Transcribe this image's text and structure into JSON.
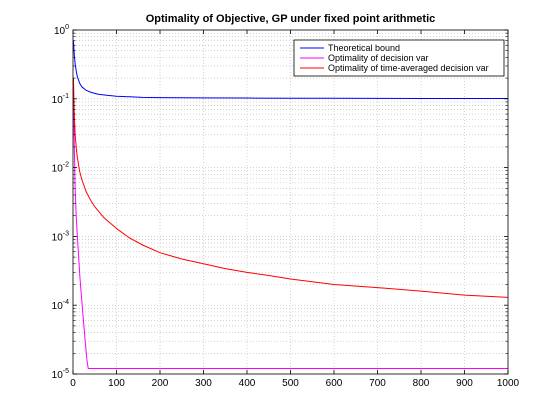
{
  "chart_data": {
    "type": "line",
    "title": "Optimality of Objective, GP under fixed point arithmetic",
    "xlabel": "",
    "ylabel": "",
    "xlim": [
      0,
      1000
    ],
    "ylim": [
      1e-05,
      1
    ],
    "yscale": "log",
    "grid": true,
    "legend_position": "top-right",
    "x_ticks": [
      0,
      100,
      200,
      300,
      400,
      500,
      600,
      700,
      800,
      900,
      1000
    ],
    "x_tick_labels": [
      "0",
      "100",
      "200",
      "300",
      "400",
      "500",
      "600",
      "700",
      "800",
      "900",
      "1000"
    ],
    "y_ticks": [
      {
        "value": 1,
        "base": "10",
        "exp": "0"
      },
      {
        "value": 0.1,
        "base": "10",
        "exp": "-1"
      },
      {
        "value": 0.01,
        "base": "10",
        "exp": "-2"
      },
      {
        "value": 0.001,
        "base": "10",
        "exp": "-3"
      },
      {
        "value": 0.0001,
        "base": "10",
        "exp": "-4"
      },
      {
        "value": 1e-05,
        "base": "10",
        "exp": "-5"
      }
    ],
    "series": [
      {
        "name": "Theoretical bound",
        "color": "#0000ff",
        "x": [
          1,
          2,
          3,
          5,
          8,
          10,
          15,
          20,
          30,
          40,
          50,
          60,
          80,
          100,
          130,
          160,
          200,
          250,
          300,
          400,
          500,
          600,
          700,
          800,
          900,
          1000
        ],
        "y": [
          0.7,
          0.55,
          0.43,
          0.32,
          0.24,
          0.21,
          0.17,
          0.15,
          0.133,
          0.125,
          0.12,
          0.116,
          0.112,
          0.109,
          0.107,
          0.105,
          0.104,
          0.1035,
          0.103,
          0.1025,
          0.102,
          0.1017,
          0.1014,
          0.1012,
          0.1011,
          0.101
        ]
      },
      {
        "name": "Optimality of decision var",
        "color": "#ff00ff",
        "x": [
          1,
          2,
          3,
          4,
          5,
          7,
          10,
          13,
          16,
          20,
          24,
          28,
          32,
          35,
          40,
          100,
          200,
          400,
          600,
          800,
          1000
        ],
        "y": [
          0.2,
          0.05,
          0.02,
          0.01,
          0.005,
          0.0022,
          0.001,
          0.0005,
          0.00025,
          0.00012,
          6e-05,
          3e-05,
          1.6e-05,
          1.2e-05,
          1.2e-05,
          1.2e-05,
          1.2e-05,
          1.2e-05,
          1.2e-05,
          1.2e-05,
          1.2e-05
        ]
      },
      {
        "name": "Optimality of time-averaged decision var",
        "color": "#ff0000",
        "x": [
          1,
          2,
          3,
          5,
          8,
          10,
          15,
          20,
          30,
          40,
          50,
          70,
          100,
          130,
          160,
          200,
          250,
          300,
          350,
          400,
          450,
          500,
          600,
          700,
          800,
          900,
          1000
        ],
        "y": [
          0.2,
          0.1,
          0.06,
          0.03,
          0.018,
          0.014,
          0.009,
          0.0068,
          0.0045,
          0.0034,
          0.0027,
          0.0019,
          0.0013,
          0.00095,
          0.00075,
          0.00058,
          0.00047,
          0.0004,
          0.00034,
          0.0003,
          0.00027,
          0.00024,
          0.0002,
          0.00018,
          0.00016,
          0.00014,
          0.00013
        ]
      }
    ]
  }
}
